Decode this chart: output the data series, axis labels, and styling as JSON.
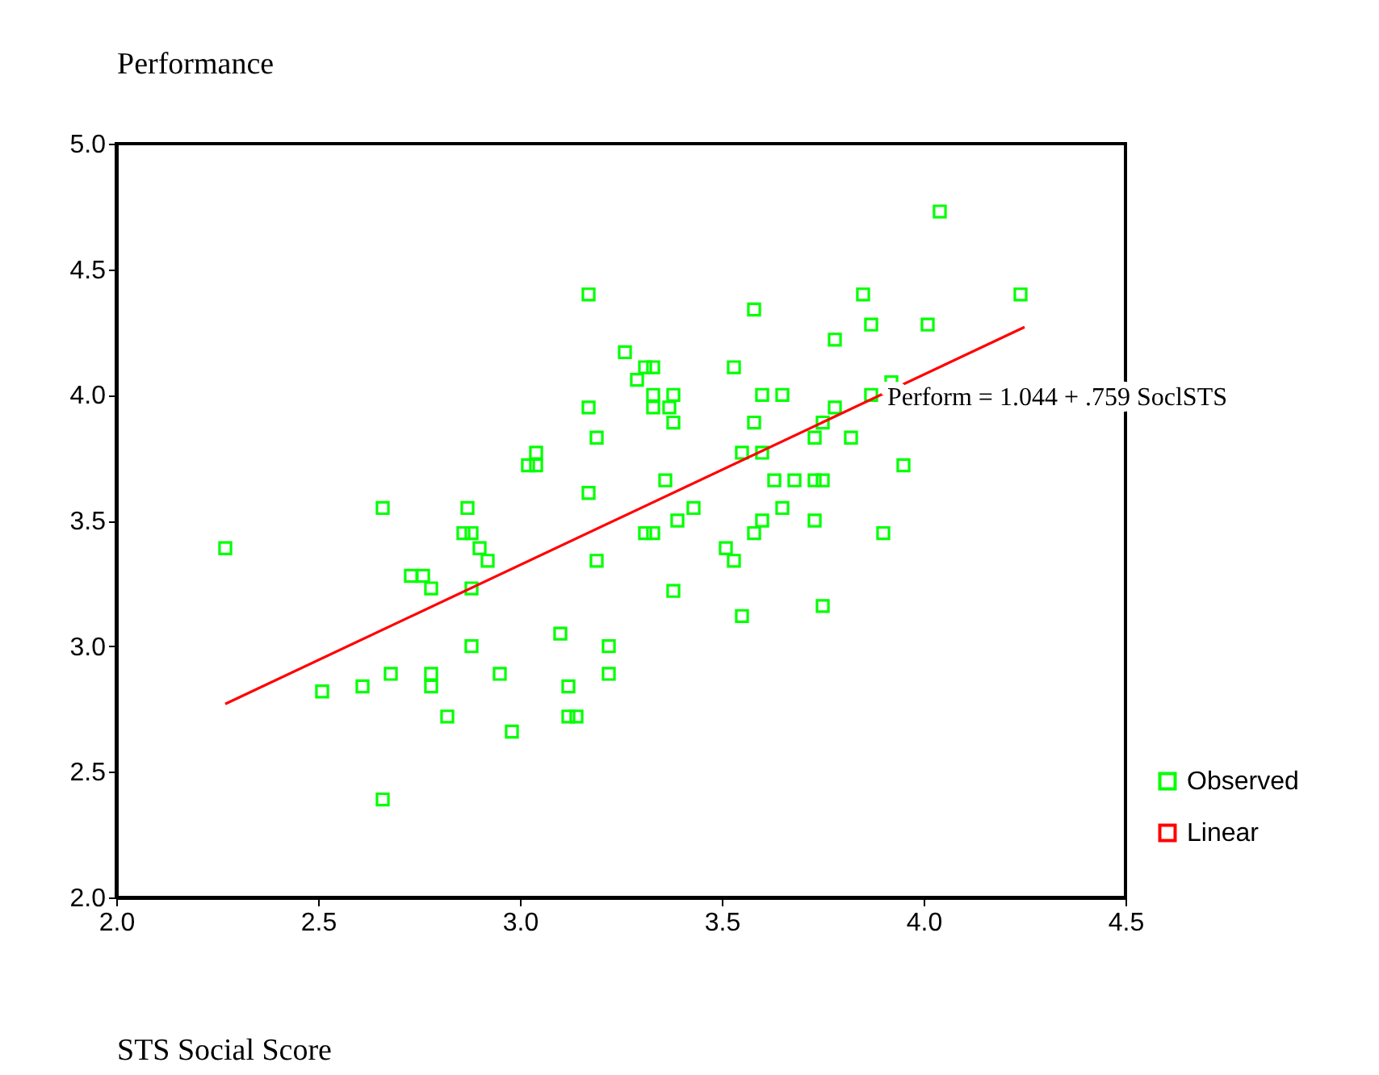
{
  "chart_data": {
    "type": "scatter",
    "xlabel": "STS Social Score",
    "ylabel": "Performance",
    "xlim": [
      2,
      4.5
    ],
    "ylim": [
      2,
      5
    ],
    "xticks": [
      {
        "value": 2,
        "label": "2.0"
      },
      {
        "value": 2.5,
        "label": "2.5"
      },
      {
        "value": 3,
        "label": "3.0"
      },
      {
        "value": 3.5,
        "label": "3.5"
      },
      {
        "value": 4,
        "label": "4.0"
      },
      {
        "value": 4.5,
        "label": "4.5"
      }
    ],
    "yticks": [
      {
        "value": 2,
        "label": "2.0"
      },
      {
        "value": 2.5,
        "label": "2.5"
      },
      {
        "value": 3,
        "label": "3.0"
      },
      {
        "value": 3.5,
        "label": "3.5"
      },
      {
        "value": 4,
        "label": "4.0"
      },
      {
        "value": 4.5,
        "label": "4.5"
      },
      {
        "value": 5,
        "label": "5.0"
      }
    ],
    "grid": false,
    "legend": "bottom right",
    "annotations": [
      {
        "text": "Perform = 1.044 + .759 SoclSTS",
        "x": 3.91,
        "y": 3.99
      }
    ],
    "series": [
      {
        "name": "Observed",
        "marker": "square",
        "color": "#00ff00",
        "x": [
          2.27,
          2.66,
          2.73,
          2.76,
          2.78,
          2.86,
          2.87,
          2.88,
          2.9,
          2.92,
          2.88,
          2.88,
          2.68,
          2.78,
          2.78,
          2.61,
          2.51,
          2.82,
          2.95,
          2.98,
          2.66,
          3.1,
          3.12,
          3.12,
          3.14,
          3.22,
          3.22,
          3.19,
          3.17,
          3.02,
          3.04,
          3.04,
          3.17,
          3.19,
          3.17,
          3.26,
          3.29,
          3.31,
          3.33,
          3.33,
          3.33,
          3.37,
          3.38,
          3.38,
          3.36,
          3.31,
          3.33,
          3.39,
          3.43,
          3.38,
          3.51,
          3.53,
          3.55,
          3.53,
          3.58,
          3.58,
          3.6,
          3.65,
          3.55,
          3.6,
          3.58,
          3.6,
          3.63,
          3.65,
          3.68,
          3.73,
          3.75,
          3.73,
          3.75,
          3.75,
          3.73,
          3.78,
          3.78,
          3.85,
          3.87,
          3.82,
          3.87,
          3.92,
          3.95,
          3.9,
          4.01,
          4.04,
          4.24
        ],
        "values": [
          3.39,
          3.55,
          3.28,
          3.28,
          3.23,
          3.45,
          3.55,
          3.45,
          3.39,
          3.34,
          3.23,
          3.0,
          2.89,
          2.89,
          2.84,
          2.84,
          2.82,
          2.72,
          2.89,
          2.66,
          2.39,
          3.05,
          2.84,
          2.72,
          2.72,
          3.0,
          2.89,
          3.34,
          3.61,
          3.72,
          3.77,
          3.72,
          3.95,
          3.83,
          4.4,
          4.17,
          4.06,
          4.11,
          4.11,
          4.0,
          3.95,
          3.95,
          4.0,
          3.89,
          3.66,
          3.45,
          3.45,
          3.5,
          3.55,
          3.22,
          3.39,
          3.34,
          3.12,
          4.11,
          4.34,
          3.89,
          4.0,
          4.0,
          3.77,
          3.77,
          3.45,
          3.5,
          3.66,
          3.55,
          3.66,
          3.66,
          3.66,
          3.5,
          3.16,
          3.89,
          3.83,
          3.95,
          4.22,
          4.4,
          4.28,
          3.83,
          4.0,
          4.05,
          3.72,
          3.45,
          4.28,
          4.73,
          4.4
        ]
      },
      {
        "name": "Linear",
        "type": "line",
        "marker": "none",
        "line_style": "solid",
        "color": "#ff0000",
        "x": [
          2.27,
          4.25
        ],
        "values": [
          2.77,
          4.27
        ]
      }
    ]
  }
}
